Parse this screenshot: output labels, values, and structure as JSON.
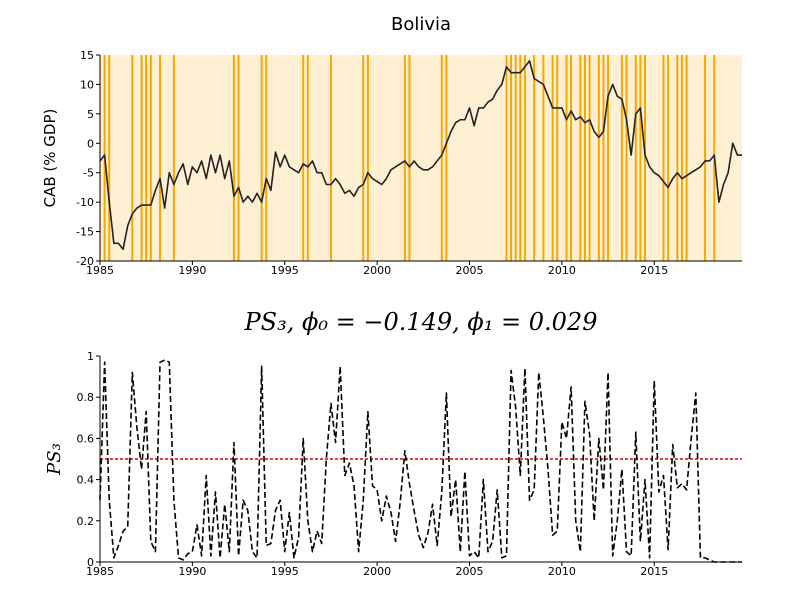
{
  "chart_data": [
    {
      "type": "line",
      "title": "Bolivia",
      "ylabel": "CAB (% GDP)",
      "color": "#222222",
      "background": "#fff0d4",
      "regime_color": "#f5a800",
      "xlim": [
        1985,
        2019.75
      ],
      "xticks": [
        1985,
        1990,
        1995,
        2000,
        2005,
        2010,
        2015
      ],
      "ylim": [
        -20,
        15
      ],
      "yticks": [
        -20,
        -15,
        -10,
        -5,
        0,
        5,
        10,
        15
      ],
      "regime_x": [
        1985.25,
        1985.5,
        1986.75,
        1987.25,
        1987.5,
        1987.75,
        1988.25,
        1989,
        1992.25,
        1992.5,
        1993.75,
        1994,
        1996,
        1996.25,
        1997.5,
        1999.25,
        1999.5,
        2001.5,
        2001.75,
        2003.5,
        2003.75,
        2007,
        2007.25,
        2007.5,
        2007.75,
        2008,
        2008.5,
        2009,
        2009.5,
        2009.75,
        2010.25,
        2010.5,
        2011,
        2011.25,
        2011.5,
        2012,
        2012.25,
        2012.5,
        2013.25,
        2013.5,
        2014,
        2014.25,
        2014.5,
        2015.5,
        2015.75,
        2016.25,
        2016.5,
        2016.75,
        2017.75,
        2018.25
      ],
      "x": [
        1985,
        1985.25,
        1985.5,
        1985.75,
        1986,
        1986.25,
        1986.5,
        1986.75,
        1987,
        1987.25,
        1987.5,
        1987.75,
        1988,
        1988.25,
        1988.5,
        1988.75,
        1989,
        1989.25,
        1989.5,
        1989.75,
        1990,
        1990.25,
        1990.5,
        1990.75,
        1991,
        1991.25,
        1991.5,
        1991.75,
        1992,
        1992.25,
        1992.5,
        1992.75,
        1993,
        1993.25,
        1993.5,
        1993.75,
        1994,
        1994.25,
        1994.5,
        1994.75,
        1995,
        1995.25,
        1995.5,
        1995.75,
        1996,
        1996.25,
        1996.5,
        1996.75,
        1997,
        1997.25,
        1997.5,
        1997.75,
        1998,
        1998.25,
        1998.5,
        1998.75,
        1999,
        1999.25,
        1999.5,
        1999.75,
        2000,
        2000.25,
        2000.5,
        2000.75,
        2001,
        2001.25,
        2001.5,
        2001.75,
        2002,
        2002.25,
        2002.5,
        2002.75,
        2003,
        2003.25,
        2003.5,
        2003.75,
        2004,
        2004.25,
        2004.5,
        2004.75,
        2005,
        2005.25,
        2005.5,
        2005.75,
        2006,
        2006.25,
        2006.5,
        2006.75,
        2007,
        2007.25,
        2007.5,
        2007.75,
        2008,
        2008.25,
        2008.5,
        2008.75,
        2009,
        2009.25,
        2009.5,
        2009.75,
        2010,
        2010.25,
        2010.5,
        2010.75,
        2011,
        2011.25,
        2011.5,
        2011.75,
        2012,
        2012.25,
        2012.5,
        2012.75,
        2013,
        2013.25,
        2013.5,
        2013.75,
        2014,
        2014.25,
        2014.5,
        2014.75,
        2015,
        2015.25,
        2015.5,
        2015.75,
        2016,
        2016.25,
        2016.5,
        2016.75,
        2017,
        2017.25,
        2017.5,
        2017.75,
        2018,
        2018.25,
        2018.5,
        2018.75,
        2019,
        2019.25,
        2019.5,
        2019.75
      ],
      "values": [
        -3,
        -2,
        -10,
        -17,
        -17,
        -18,
        -14,
        -12,
        -11,
        -10.5,
        -10.5,
        -10.5,
        -8,
        -6,
        -11,
        -5,
        -7,
        -5,
        -3.5,
        -7,
        -4,
        -5,
        -3,
        -6,
        -2,
        -5,
        -2,
        -6,
        -3,
        -9,
        -7.5,
        -10,
        -9,
        -10,
        -8.5,
        -10,
        -6,
        -8,
        -1.5,
        -4,
        -2,
        -4,
        -4.5,
        -5,
        -3.5,
        -4,
        -3,
        -5,
        -5,
        -7,
        -7,
        -6,
        -7,
        -8.5,
        -8,
        -9,
        -7.5,
        -7,
        -5,
        -6,
        -6.5,
        -7,
        -6,
        -4.5,
        -4,
        -3.5,
        -3,
        -4,
        -3,
        -4,
        -4.5,
        -4.5,
        -4,
        -3,
        -2,
        0,
        2,
        3.5,
        4,
        4,
        6,
        3,
        6,
        6,
        7,
        7.5,
        9,
        10,
        13,
        12,
        12,
        12,
        13,
        14,
        11,
        10.5,
        10,
        8,
        6,
        6,
        6,
        4,
        5.5,
        4,
        4.5,
        3.5,
        4,
        2,
        1,
        2,
        8,
        10,
        8,
        7.5,
        4,
        -2,
        5,
        6,
        -2,
        -4,
        -5,
        -5.5,
        -6.5,
        -7.5,
        -6,
        -5,
        -6,
        -5.5,
        -5,
        -4.5,
        -4,
        -3,
        -3,
        -2,
        -10,
        -7,
        -5,
        0,
        -2,
        -2
      ]
    },
    {
      "type": "line",
      "title": "PS₃, ϕ₀ = −0.149, ϕ₁ = 0.029",
      "ylabel": "PS₃",
      "color": "#000000",
      "dashed": true,
      "reference": {
        "value": 0.5,
        "color": "#e00000"
      },
      "xlim": [
        1985,
        2019.75
      ],
      "xticks": [
        1985,
        1990,
        1995,
        2000,
        2005,
        2010,
        2015
      ],
      "ylim": [
        0,
        1
      ],
      "yticks": [
        0,
        0.2,
        0.4,
        0.6,
        0.8,
        1
      ],
      "x": [
        1985,
        1985.25,
        1985.5,
        1985.75,
        1986,
        1986.25,
        1986.5,
        1986.75,
        1987,
        1987.25,
        1987.5,
        1987.75,
        1988,
        1988.25,
        1988.5,
        1988.75,
        1989,
        1989.25,
        1989.5,
        1989.75,
        1990,
        1990.25,
        1990.5,
        1990.75,
        1991,
        1991.25,
        1991.5,
        1991.75,
        1992,
        1992.25,
        1992.5,
        1992.75,
        1993,
        1993.25,
        1993.5,
        1993.75,
        1994,
        1994.25,
        1994.5,
        1994.75,
        1995,
        1995.25,
        1995.5,
        1995.75,
        1996,
        1996.25,
        1996.5,
        1996.75,
        1997,
        1997.25,
        1997.5,
        1997.75,
        1998,
        1998.25,
        1998.5,
        1998.75,
        1999,
        1999.25,
        1999.5,
        1999.75,
        2000,
        2000.25,
        2000.5,
        2000.75,
        2001,
        2001.25,
        2001.5,
        2001.75,
        2002,
        2002.25,
        2002.5,
        2002.75,
        2003,
        2003.25,
        2003.5,
        2003.75,
        2004,
        2004.25,
        2004.5,
        2004.75,
        2005,
        2005.25,
        2005.5,
        2005.75,
        2006,
        2006.25,
        2006.5,
        2006.75,
        2007,
        2007.25,
        2007.5,
        2007.75,
        2008,
        2008.25,
        2008.5,
        2008.75,
        2009,
        2009.25,
        2009.5,
        2009.75,
        2010,
        2010.25,
        2010.5,
        2010.75,
        2011,
        2011.25,
        2011.5,
        2011.75,
        2012,
        2012.25,
        2012.5,
        2012.75,
        2013,
        2013.25,
        2013.5,
        2013.75,
        2014,
        2014.25,
        2014.5,
        2014.75,
        2015,
        2015.25,
        2015.5,
        2015.75,
        2016,
        2016.25,
        2016.5,
        2016.75,
        2017,
        2017.25,
        2017.5,
        2017.75,
        2018,
        2018.25,
        2018.5,
        2018.75,
        2019,
        2019.25,
        2019.5,
        2019.75
      ],
      "values": [
        0.3,
        0.97,
        0.3,
        0.02,
        0.08,
        0.15,
        0.17,
        0.92,
        0.65,
        0.45,
        0.73,
        0.1,
        0.05,
        0.97,
        0.98,
        0.97,
        0.3,
        0.02,
        0.01,
        0.04,
        0.05,
        0.18,
        0.03,
        0.42,
        0.03,
        0.34,
        0.02,
        0.28,
        0.05,
        0.58,
        0.03,
        0.3,
        0.25,
        0.05,
        0.02,
        0.95,
        0.08,
        0.09,
        0.25,
        0.3,
        0.05,
        0.24,
        0.02,
        0.12,
        0.6,
        0.2,
        0.05,
        0.15,
        0.09,
        0.5,
        0.77,
        0.58,
        0.95,
        0.42,
        0.48,
        0.37,
        0.05,
        0.3,
        0.73,
        0.37,
        0.35,
        0.2,
        0.32,
        0.24,
        0.1,
        0.29,
        0.54,
        0.38,
        0.25,
        0.13,
        0.07,
        0.14,
        0.28,
        0.08,
        0.34,
        0.82,
        0.22,
        0.4,
        0.05,
        0.44,
        0.03,
        0.05,
        0.02,
        0.4,
        0.05,
        0.1,
        0.35,
        0.02,
        0.03,
        0.93,
        0.75,
        0.42,
        0.94,
        0.3,
        0.35,
        0.92,
        0.7,
        0.45,
        0.13,
        0.15,
        0.68,
        0.6,
        0.85,
        0.2,
        0.05,
        0.78,
        0.62,
        0.2,
        0.6,
        0.35,
        0.92,
        0.03,
        0.2,
        0.45,
        0.05,
        0.03,
        0.63,
        0.1,
        0.4,
        0.02,
        0.88,
        0.34,
        0.42,
        0.06,
        0.57,
        0.36,
        0.38,
        0.35,
        0.6,
        0.82,
        0.02,
        0.02,
        0.01,
        0,
        0,
        0,
        0,
        0,
        0,
        0
      ]
    }
  ]
}
